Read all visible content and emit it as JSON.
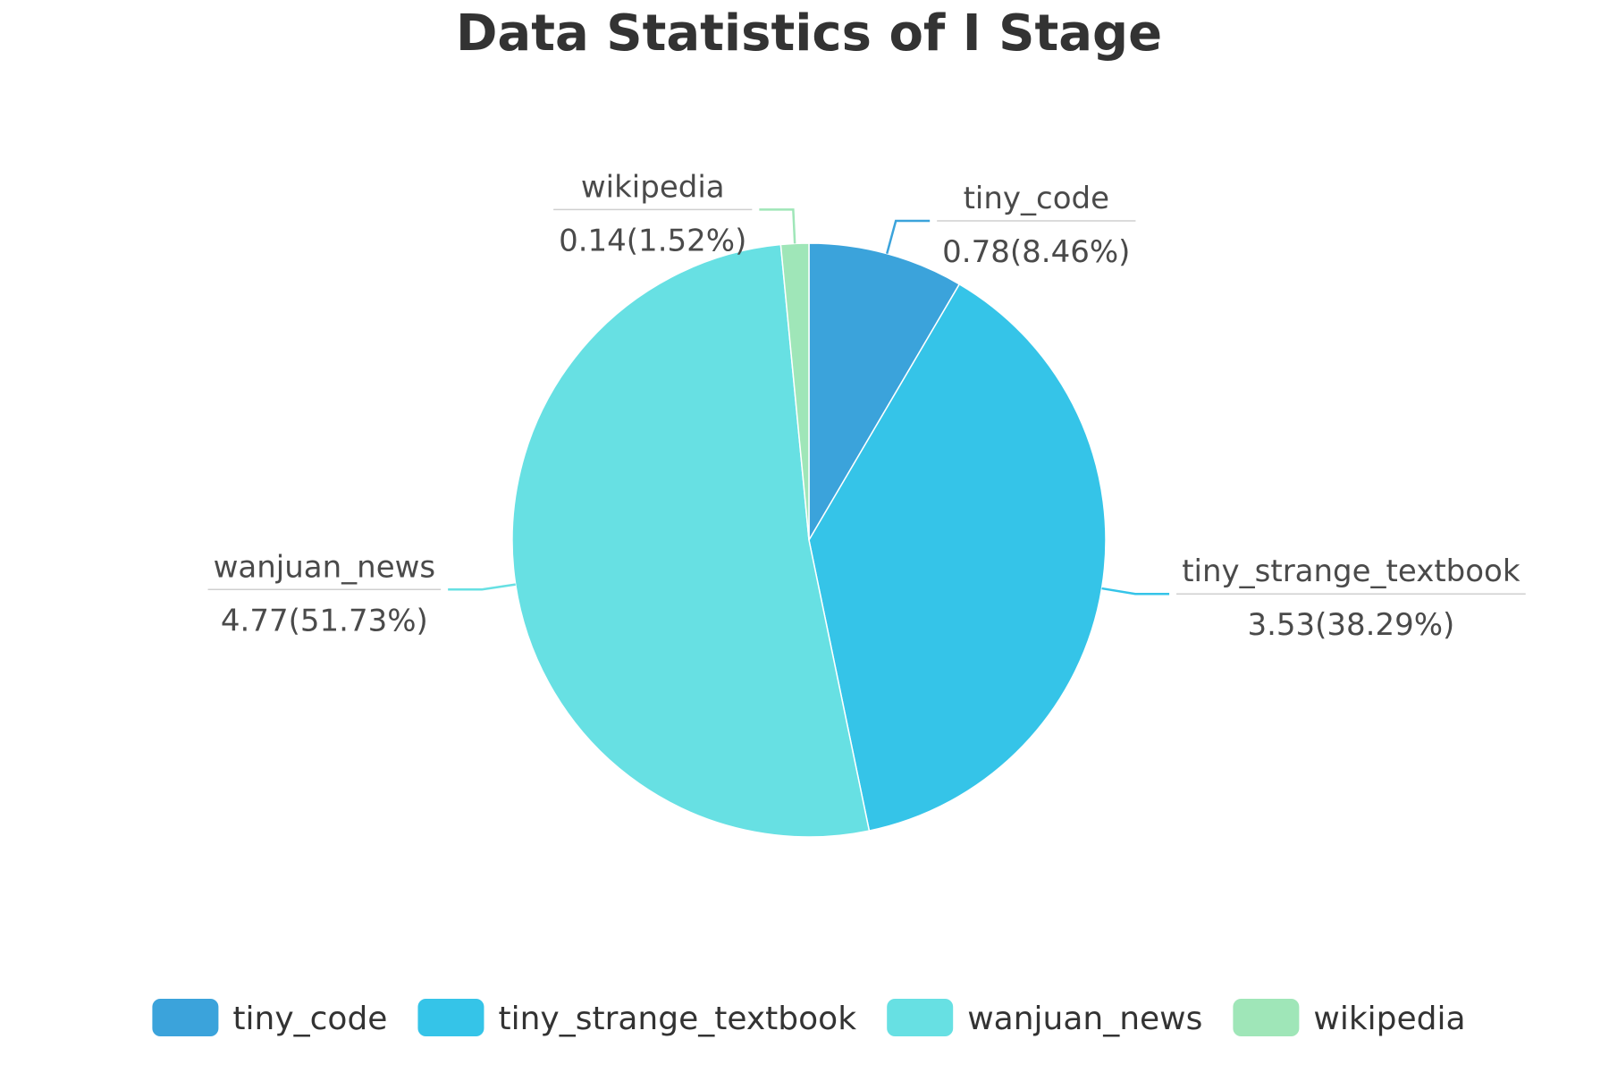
{
  "chart_data": {
    "type": "pie",
    "title": "Data Statistics of I Stage",
    "legend_position": "bottom",
    "start_angle_deg": 90,
    "direction": "clockwise",
    "slices": [
      {
        "name": "tiny_code",
        "value": 0.78,
        "percent_label": "8.46%",
        "label_text": "0.78(8.46%)",
        "color": "#3ba3db"
      },
      {
        "name": "tiny_strange_textbook",
        "value": 3.53,
        "percent_label": "38.29%",
        "label_text": "3.53(38.29%)",
        "color": "#35c4e8"
      },
      {
        "name": "wanjuan_news",
        "value": 4.77,
        "percent_label": "51.73%",
        "label_text": "4.77(51.73%)",
        "color": "#67e0e3"
      },
      {
        "name": "wikipedia",
        "value": 0.14,
        "percent_label": "1.52%",
        "label_text": "0.14(1.52%)",
        "color": "#9fe6b8"
      }
    ]
  }
}
